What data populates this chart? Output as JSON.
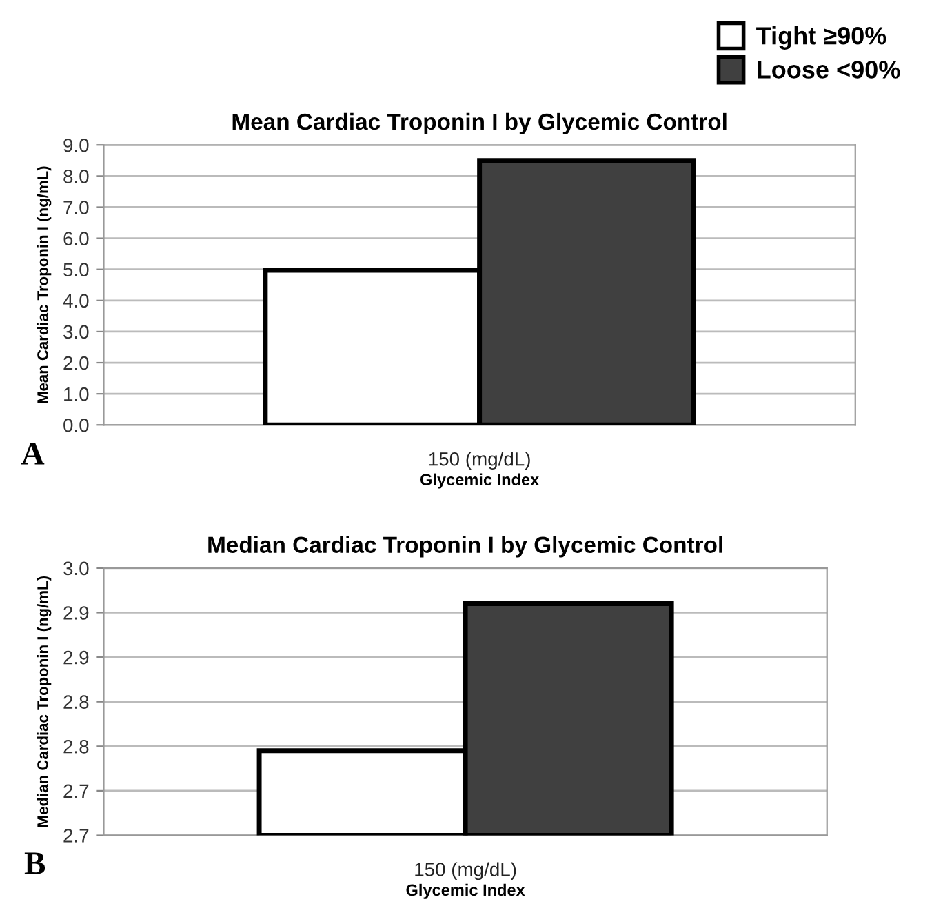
{
  "chart_data": [
    {
      "type": "bar",
      "title": "Mean Cardiac Troponin I by Glycemic Control",
      "xlabel": "Glycemic Index",
      "ylabel": "Mean Cardiac Troponin I (ng/mL)",
      "categories": [
        "150 (mg/dL)"
      ],
      "series": [
        {
          "name": "Tight ≥90%",
          "color": "#ffffff",
          "values": [
            4.97
          ]
        },
        {
          "name": "Loose <90%",
          "color": "#404040",
          "values": [
            8.5
          ]
        }
      ],
      "ylim": [
        0,
        9
      ],
      "yticks": [
        {
          "value": 0,
          "label": "0.0"
        },
        {
          "value": 1,
          "label": "1.0"
        },
        {
          "value": 2,
          "label": "2.0"
        },
        {
          "value": 3,
          "label": "3.0"
        },
        {
          "value": 4,
          "label": "4.0"
        },
        {
          "value": 5,
          "label": "5.0"
        },
        {
          "value": 6,
          "label": "6.0"
        },
        {
          "value": 7,
          "label": "7.0"
        },
        {
          "value": 8,
          "label": "8.0"
        },
        {
          "value": 9,
          "label": "9.0"
        }
      ],
      "grid": "y",
      "legend": "top right",
      "annotations": [
        "A"
      ]
    },
    {
      "type": "bar",
      "title": "Median Cardiac Troponin I by Glycemic Control",
      "xlabel": "Glycemic Index",
      "ylabel": "Median Cardiac Troponin I (ng/mL)",
      "categories": [
        "150 (mg/dL)"
      ],
      "series": [
        {
          "color": "#ffffff",
          "values": [
            2.745
          ]
        },
        {
          "color": "#404040",
          "values": [
            2.91
          ]
        }
      ],
      "ylim": [
        2.65,
        2.95
      ],
      "yticks": [
        {
          "value": 2.65,
          "label": "2.7"
        },
        {
          "value": 2.7,
          "label": "2.7"
        },
        {
          "value": 2.75,
          "label": "2.8"
        },
        {
          "value": 2.8,
          "label": "2.8"
        },
        {
          "value": 2.85,
          "label": "2.9"
        },
        {
          "value": 2.9,
          "label": "2.9"
        },
        {
          "value": 2.95,
          "label": "3.0"
        }
      ],
      "grid": "y",
      "annotations": [
        "B"
      ]
    }
  ]
}
